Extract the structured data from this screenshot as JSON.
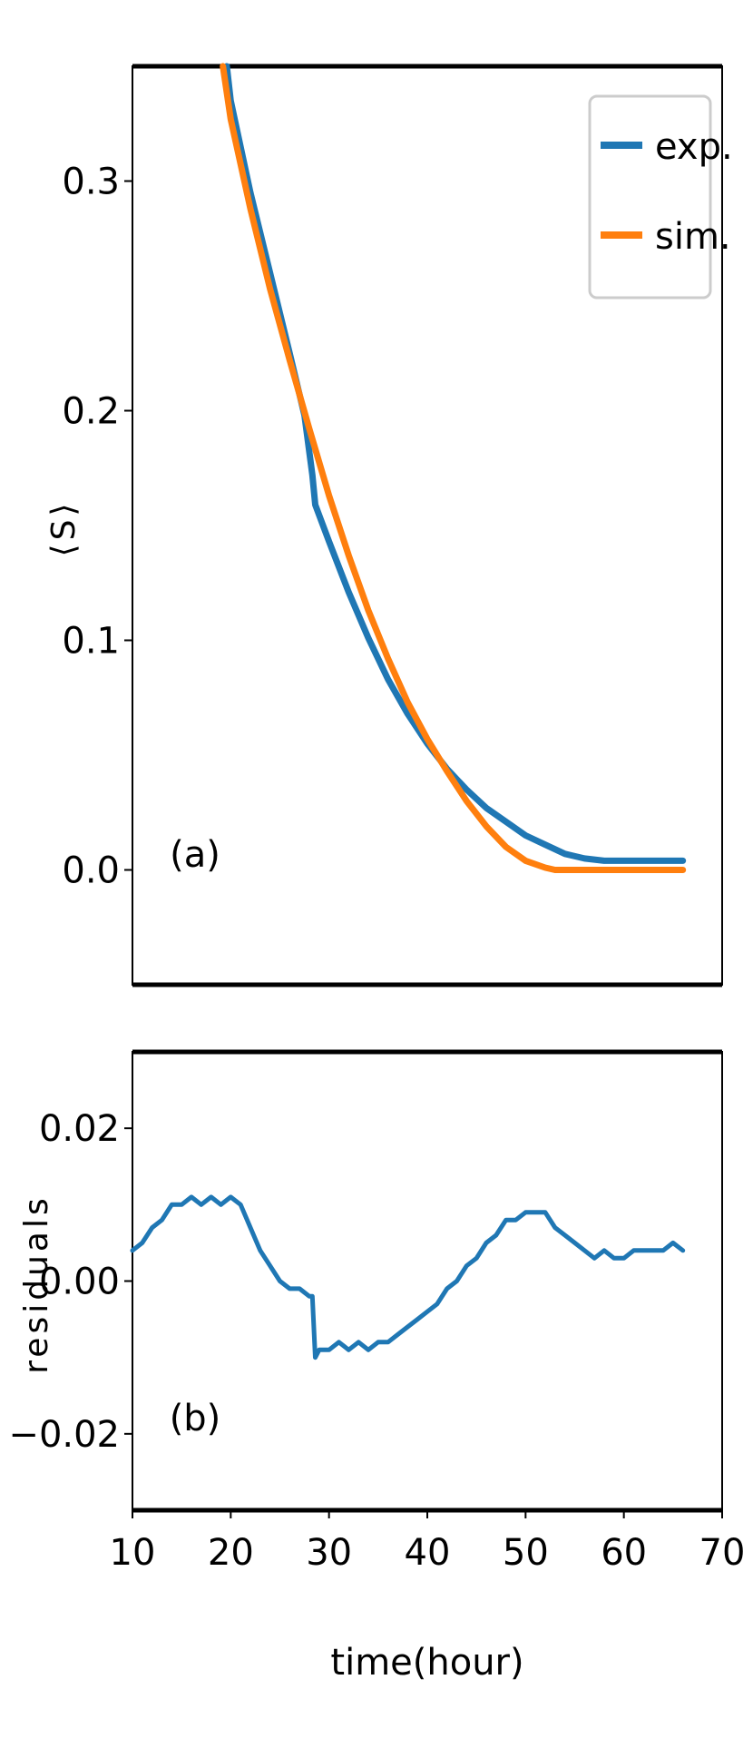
{
  "chart_data": [
    {
      "type": "line",
      "panel_label": "(a)",
      "ylabel": "⟨S⟩",
      "xlim": [
        10,
        70
      ],
      "ylim": [
        -0.05,
        0.35
      ],
      "yticks": [
        0.0,
        0.1,
        0.2,
        0.3
      ],
      "ytick_labels": [
        "0.0",
        "0.1",
        "0.2",
        "0.3"
      ],
      "legend": {
        "placement": "top-right",
        "entries": [
          "exp.",
          "sim."
        ]
      },
      "colors": {
        "exp.": "#1f77b4",
        "sim.": "#ff7f0e"
      },
      "series": [
        {
          "name": "exp.",
          "x": [
            19.6,
            20,
            22,
            24,
            26,
            27.5,
            28.3,
            28.6,
            30,
            32,
            34,
            36,
            38,
            40,
            42,
            44,
            46,
            48,
            50,
            52,
            54,
            56,
            58,
            60,
            62,
            64,
            66
          ],
          "y": [
            0.35,
            0.335,
            0.295,
            0.26,
            0.225,
            0.198,
            0.172,
            0.159,
            0.143,
            0.121,
            0.101,
            0.083,
            0.068,
            0.055,
            0.044,
            0.035,
            0.027,
            0.021,
            0.015,
            0.011,
            0.007,
            0.005,
            0.004,
            0.004,
            0.004,
            0.004,
            0.004
          ]
        },
        {
          "name": "sim.",
          "x": [
            19.2,
            20,
            22,
            24,
            26,
            28,
            30,
            32,
            34,
            36,
            38,
            40,
            42,
            44,
            46,
            48,
            50,
            52,
            53,
            54,
            56,
            58,
            60,
            62,
            64,
            66
          ],
          "y": [
            0.35,
            0.327,
            0.288,
            0.253,
            0.222,
            0.192,
            0.163,
            0.137,
            0.113,
            0.092,
            0.073,
            0.057,
            0.043,
            0.03,
            0.019,
            0.01,
            0.004,
            0.001,
            0.0,
            0.0,
            0.0,
            0.0,
            0.0,
            0.0,
            0.0,
            0.0
          ]
        }
      ]
    },
    {
      "type": "line",
      "panel_label": "(b)",
      "ylabel": "residuals",
      "xlabel": "time(hour)",
      "xlim": [
        10,
        70
      ],
      "ylim": [
        -0.03,
        0.03
      ],
      "yticks": [
        -0.02,
        0.0,
        0.02
      ],
      "ytick_labels": [
        "−0.02",
        "0.00",
        "0.02"
      ],
      "xticks": [
        10,
        20,
        30,
        40,
        50,
        60,
        70
      ],
      "xtick_labels": [
        "10",
        "20",
        "30",
        "40",
        "50",
        "60",
        "70"
      ],
      "colors": {
        "residuals": "#1f77b4"
      },
      "series": [
        {
          "x": [
            10,
            11,
            12,
            13,
            14,
            15,
            16,
            17,
            18,
            19,
            20,
            21,
            22,
            23,
            24,
            25,
            26,
            27,
            28,
            28.3,
            28.6,
            29,
            30,
            31,
            32,
            33,
            34,
            35,
            36,
            37,
            38,
            39,
            40,
            41,
            42,
            43,
            44,
            45,
            46,
            47,
            48,
            49,
            50,
            51,
            52,
            53,
            54,
            55,
            56,
            57,
            58,
            59,
            60,
            61,
            62,
            63,
            64,
            65,
            66
          ],
          "y": [
            0.004,
            0.005,
            0.007,
            0.008,
            0.01,
            0.01,
            0.011,
            0.01,
            0.011,
            0.01,
            0.011,
            0.01,
            0.007,
            0.004,
            0.002,
            0.0,
            -0.001,
            -0.001,
            -0.002,
            -0.002,
            -0.01,
            -0.009,
            -0.009,
            -0.008,
            -0.009,
            -0.008,
            -0.009,
            -0.008,
            -0.008,
            -0.007,
            -0.006,
            -0.005,
            -0.004,
            -0.003,
            -0.001,
            0.0,
            0.002,
            0.003,
            0.005,
            0.006,
            0.008,
            0.008,
            0.009,
            0.009,
            0.009,
            0.007,
            0.006,
            0.005,
            0.004,
            0.003,
            0.004,
            0.003,
            0.003,
            0.004,
            0.004,
            0.004,
            0.004,
            0.005,
            0.004
          ]
        }
      ]
    }
  ]
}
